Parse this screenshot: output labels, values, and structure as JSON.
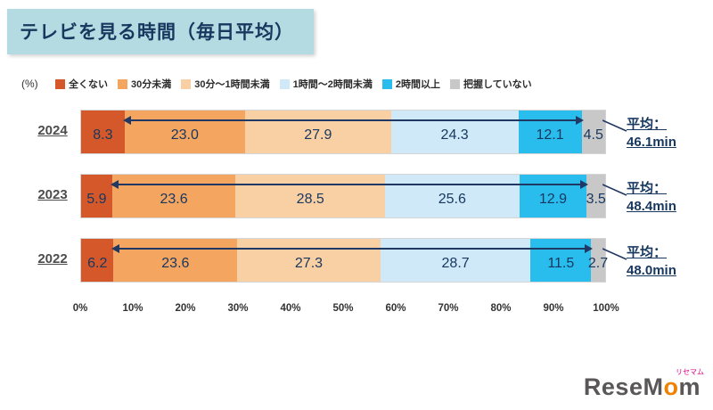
{
  "title": "テレビを見る時間（毎日平均）",
  "unit_label": "(%)",
  "legend": [
    {
      "label": "全くない",
      "color": "#d4582a"
    },
    {
      "label": "30分未満",
      "color": "#f4a560"
    },
    {
      "label": "30分～1時間未満",
      "color": "#f9cfa4"
    },
    {
      "label": "1時間～2時間未満",
      "color": "#cfe9f8"
    },
    {
      "label": "2時間以上",
      "color": "#29bdee"
    },
    {
      "label": "把握していない",
      "color": "#c8c8c8"
    }
  ],
  "chart_data": {
    "type": "bar",
    "orientation": "horizontal-stacked",
    "title": "テレビを見る時間（毎日平均）",
    "xlabel": "(%)",
    "xlim": [
      0,
      100
    ],
    "categories": [
      "2024",
      "2023",
      "2022"
    ],
    "series_labels": [
      "全くない",
      "30分未満",
      "30分～1時間未満",
      "1時間～2時間未満",
      "2時間以上",
      "把握していない"
    ],
    "average_prefix": "平均：",
    "rows": [
      {
        "year": "2024",
        "values": [
          8.3,
          23.0,
          27.9,
          24.3,
          12.1,
          4.5
        ],
        "labels": [
          "8.3",
          "23.0",
          "27.9",
          "24.3",
          "12.1",
          "4.5"
        ],
        "average": "46.1min"
      },
      {
        "year": "2023",
        "values": [
          5.9,
          23.6,
          28.5,
          25.6,
          12.9,
          3.5
        ],
        "labels": [
          "5.9",
          "23.6",
          "28.5",
          "25.6",
          "12.9",
          "3.5"
        ],
        "average": "48.4min"
      },
      {
        "year": "2022",
        "values": [
          6.2,
          23.6,
          27.3,
          28.7,
          11.5,
          2.7
        ],
        "labels": [
          "6.2",
          "23.6",
          "27.3",
          "28.7",
          "11.5",
          "2.7"
        ],
        "average": "48.0min"
      }
    ],
    "x_ticks": [
      "0%",
      "10%",
      "20%",
      "30%",
      "40%",
      "50%",
      "60%",
      "70%",
      "80%",
      "90%",
      "100%"
    ],
    "legend_position": "top",
    "grid": false
  },
  "logo": {
    "text": "ReseMom",
    "ruby": "リセマム",
    "letters": [
      {
        "ch": "R",
        "color": "#595757"
      },
      {
        "ch": "e",
        "color": "#595757"
      },
      {
        "ch": "s",
        "color": "#595757"
      },
      {
        "ch": "e",
        "color": "#595757"
      },
      {
        "ch": "M",
        "color": "#595757"
      },
      {
        "ch": "o",
        "color": "#ef8200"
      },
      {
        "ch": "m",
        "color": "#595757"
      }
    ]
  }
}
